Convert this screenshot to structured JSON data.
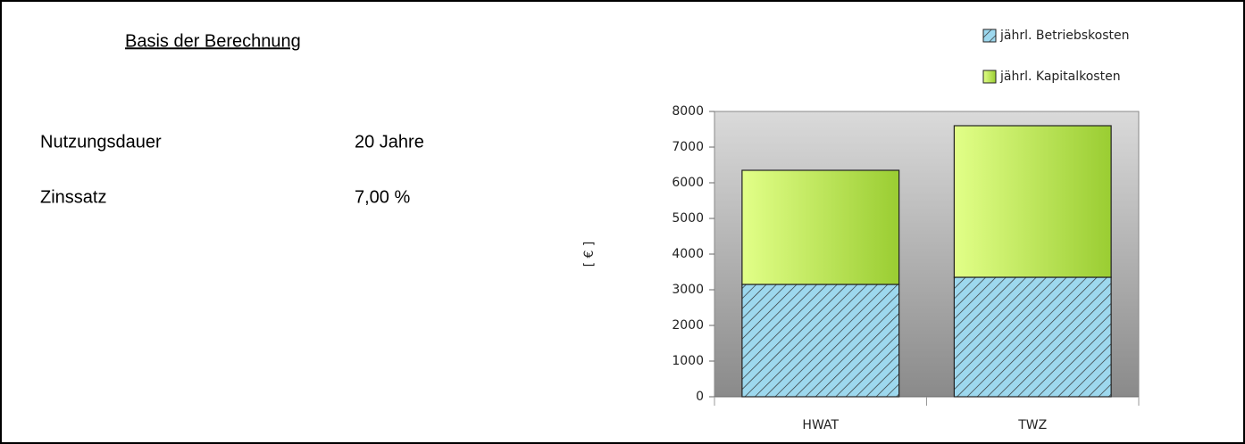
{
  "header": {
    "title": "Basis der Berechnung"
  },
  "rows": [
    [
      "Nutzungsdauer",
      "20 Jahre"
    ],
    [
      "Zinssatz",
      "7,00 %"
    ]
  ],
  "chart_data": {
    "type": "stacked_bar",
    "y_label": "[ € ]",
    "categories": [
      "HWAT",
      "TWZ"
    ],
    "series": [
      {
        "name": "jährl. Betriebskosten",
        "color": "#9dd8ee",
        "hatch": true,
        "values": [
          3150,
          3350
        ]
      },
      {
        "name": "jährl. Kapitalkosten",
        "color": "#c8f060",
        "hatch": false,
        "values": [
          3200,
          4250
        ]
      }
    ],
    "ylim": [
      0,
      8000
    ],
    "yticks": [
      0,
      1000,
      2000,
      3000,
      4000,
      5000,
      6000,
      7000,
      8000
    ],
    "legend": "top-right"
  }
}
